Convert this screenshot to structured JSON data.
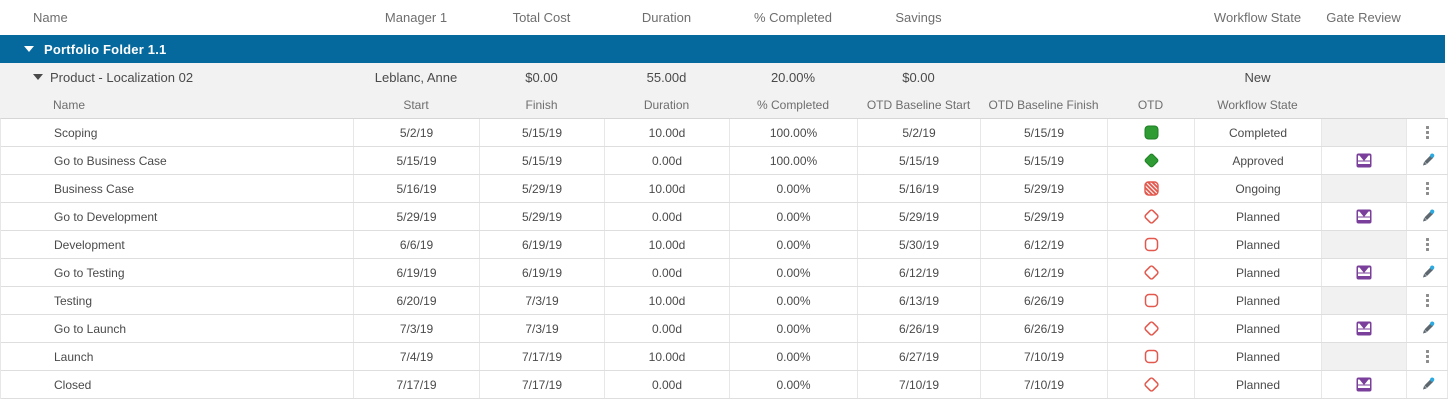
{
  "top_header": {
    "name": "Name",
    "manager": "Manager 1",
    "total_cost": "Total Cost",
    "duration": "Duration",
    "pct": "% Completed",
    "savings": "Savings",
    "workflow": "Workflow State",
    "gate": "Gate Review"
  },
  "portfolio": {
    "label": "Portfolio Folder 1.1"
  },
  "product": {
    "name": "Product - Localization 02",
    "manager": "Leblanc, Anne",
    "total_cost": "$0.00",
    "duration": "55.00d",
    "pct": "20.00%",
    "savings": "$0.00",
    "workflow": "New"
  },
  "sub_header": {
    "name": "Name",
    "start": "Start",
    "finish": "Finish",
    "duration": "Duration",
    "pct": "% Completed",
    "otd_bl_start": "OTD Baseline Start",
    "otd_bl_finish": "OTD Baseline Finish",
    "otd": "OTD",
    "workflow": "Workflow State"
  },
  "rows": [
    {
      "name": "Scoping",
      "start": "5/2/19",
      "finish": "5/15/19",
      "duration": "10.00d",
      "pct": "100.00%",
      "otd_bl_start": "5/2/19",
      "otd_bl_finish": "5/15/19",
      "otd": "completed-square",
      "workflow": "Completed",
      "gate_review": false,
      "action": "menu"
    },
    {
      "name": "Go to Business Case",
      "start": "5/15/19",
      "finish": "5/15/19",
      "duration": "0.00d",
      "pct": "100.00%",
      "otd_bl_start": "5/15/19",
      "otd_bl_finish": "5/15/19",
      "otd": "completed-diamond",
      "workflow": "Approved",
      "gate_review": true,
      "action": "edit"
    },
    {
      "name": "Business Case",
      "start": "5/16/19",
      "finish": "5/29/19",
      "duration": "10.00d",
      "pct": "0.00%",
      "otd_bl_start": "5/16/19",
      "otd_bl_finish": "5/29/19",
      "otd": "late-hatched-square",
      "workflow": "Ongoing",
      "gate_review": false,
      "action": "menu"
    },
    {
      "name": "Go to Development",
      "start": "5/29/19",
      "finish": "5/29/19",
      "duration": "0.00d",
      "pct": "0.00%",
      "otd_bl_start": "5/29/19",
      "otd_bl_finish": "5/29/19",
      "otd": "planned-diamond",
      "workflow": "Planned",
      "gate_review": true,
      "action": "edit"
    },
    {
      "name": "Development",
      "start": "6/6/19",
      "finish": "6/19/19",
      "duration": "10.00d",
      "pct": "0.00%",
      "otd_bl_start": "5/30/19",
      "otd_bl_finish": "6/12/19",
      "otd": "planned-square",
      "workflow": "Planned",
      "gate_review": false,
      "action": "menu"
    },
    {
      "name": "Go to Testing",
      "start": "6/19/19",
      "finish": "6/19/19",
      "duration": "0.00d",
      "pct": "0.00%",
      "otd_bl_start": "6/12/19",
      "otd_bl_finish": "6/12/19",
      "otd": "planned-diamond",
      "workflow": "Planned",
      "gate_review": true,
      "action": "edit"
    },
    {
      "name": "Testing",
      "start": "6/20/19",
      "finish": "7/3/19",
      "duration": "10.00d",
      "pct": "0.00%",
      "otd_bl_start": "6/13/19",
      "otd_bl_finish": "6/26/19",
      "otd": "planned-square",
      "workflow": "Planned",
      "gate_review": false,
      "action": "menu"
    },
    {
      "name": "Go to Launch",
      "start": "7/3/19",
      "finish": "7/3/19",
      "duration": "0.00d",
      "pct": "0.00%",
      "otd_bl_start": "6/26/19",
      "otd_bl_finish": "6/26/19",
      "otd": "planned-diamond",
      "workflow": "Planned",
      "gate_review": true,
      "action": "edit"
    },
    {
      "name": "Launch",
      "start": "7/4/19",
      "finish": "7/17/19",
      "duration": "10.00d",
      "pct": "0.00%",
      "otd_bl_start": "6/27/19",
      "otd_bl_finish": "7/10/19",
      "otd": "planned-square",
      "workflow": "Planned",
      "gate_review": false,
      "action": "menu"
    },
    {
      "name": "Closed",
      "start": "7/17/19",
      "finish": "7/17/19",
      "duration": "0.00d",
      "pct": "0.00%",
      "otd_bl_start": "7/10/19",
      "otd_bl_finish": "7/10/19",
      "otd": "planned-diamond",
      "workflow": "Planned",
      "gate_review": true,
      "action": "edit"
    }
  ],
  "colors": {
    "banner_blue": "#05699E",
    "row_gray": "#F2F2F2",
    "otd_green": "#2E9B33",
    "otd_green_dark": "#1E7F24",
    "otd_red": "#E2584D",
    "gate_purple": "#7A3E9B",
    "edit_dot_blue": "#2BA9E0",
    "pencil_gray": "#5C6770"
  }
}
